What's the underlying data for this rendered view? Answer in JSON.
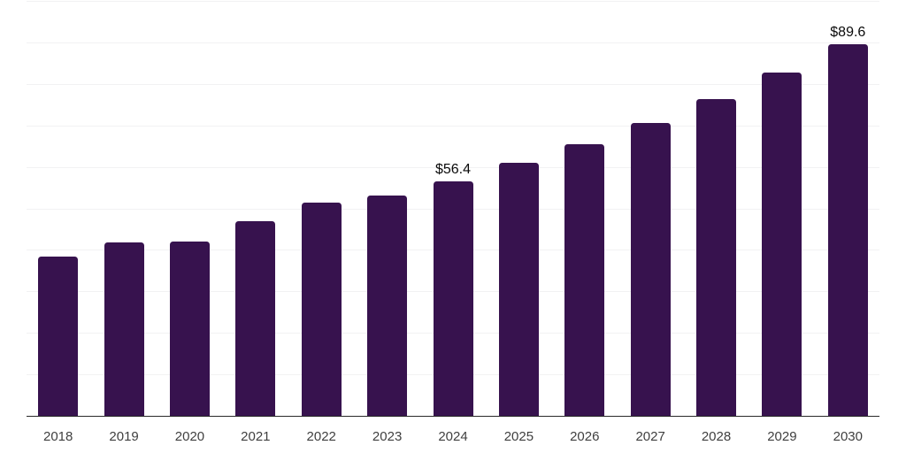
{
  "chart_data": {
    "type": "bar",
    "title": "",
    "xlabel": "",
    "ylabel": "",
    "categories": [
      "2018",
      "2019",
      "2020",
      "2021",
      "2022",
      "2023",
      "2024",
      "2025",
      "2026",
      "2027",
      "2028",
      "2029",
      "2030"
    ],
    "values": [
      38.4,
      41.7,
      42.0,
      46.9,
      51.3,
      53.1,
      56.4,
      60.9,
      65.5,
      70.5,
      76.3,
      82.7,
      89.6
    ],
    "annotations": [
      {
        "category": "2024",
        "text": "$56.4"
      },
      {
        "category": "2030",
        "text": "$89.6"
      }
    ],
    "value_prefix": "$",
    "ylim": [
      0,
      100
    ],
    "grid_interval": 10,
    "grid": "horizontal-only",
    "legend": "none",
    "y_tick_labels_visible": false,
    "colors": {
      "bar": "#37124e",
      "gridline": "#f2f2f3",
      "axis_line": "#2a2a2a",
      "tick_label": "#3f3f3f",
      "data_label": "#0a0a0a",
      "background": "#ffffff"
    }
  }
}
